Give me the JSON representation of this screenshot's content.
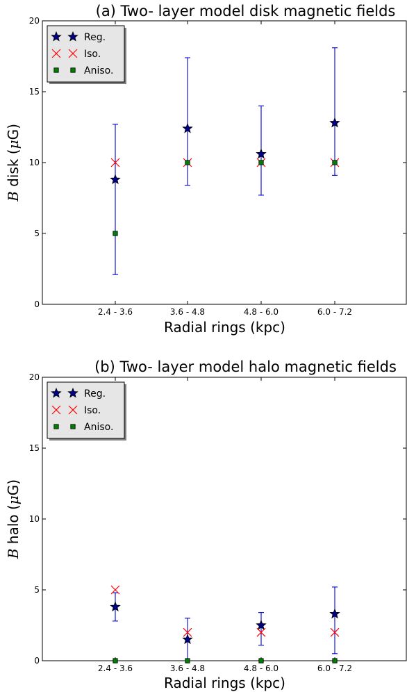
{
  "chart_data": [
    {
      "type": "scatter",
      "title": "(a) Two- layer model disk magnetic fields",
      "xlabel": "Radial rings (kpc)",
      "ylabel_var": "B",
      "ylabel_rest": " disk (",
      "ylabel_unit_mu": "μ",
      "ylabel_unit_rest": "G)",
      "categories": [
        "2.4 - 3.6",
        "3.6 - 4.8",
        "4.8 - 6.0",
        "6.0 - 7.2"
      ],
      "ylim": [
        0,
        20
      ],
      "yticks": [
        "0",
        "5",
        "10",
        "15",
        "20"
      ],
      "legend_position": "top-left",
      "series": [
        {
          "name": "Reg.",
          "marker": "star",
          "color": "#00008b",
          "values": [
            8.8,
            12.4,
            10.6,
            12.8
          ],
          "err_low": [
            2.1,
            8.4,
            7.7,
            9.1
          ],
          "err_high": [
            12.7,
            17.4,
            14.0,
            18.1
          ]
        },
        {
          "name": "Iso.",
          "marker": "x",
          "color": "#ff0000",
          "values": [
            10,
            10,
            10,
            10
          ]
        },
        {
          "name": "Aniso.",
          "marker": "square",
          "color": "#007f00",
          "values": [
            5,
            10,
            10,
            10
          ]
        }
      ]
    },
    {
      "type": "scatter",
      "title": "(b) Two- layer model halo magnetic fields",
      "xlabel": "Radial rings (kpc)",
      "ylabel_var": "B",
      "ylabel_rest": " halo (",
      "ylabel_unit_mu": "μ",
      "ylabel_unit_rest": "G)",
      "categories": [
        "2.4 - 3.6",
        "3.6 - 4.8",
        "4.8 - 6.0",
        "6.0 - 7.2"
      ],
      "ylim": [
        0,
        20
      ],
      "yticks": [
        "0",
        "5",
        "10",
        "15",
        "20"
      ],
      "legend_position": "top-left",
      "series": [
        {
          "name": "Reg.",
          "marker": "star",
          "color": "#00008b",
          "values": [
            3.8,
            1.5,
            2.5,
            3.3
          ],
          "err_low": [
            2.8,
            0,
            1.1,
            0.5
          ],
          "err_high": [
            4.8,
            3.0,
            3.4,
            5.2
          ]
        },
        {
          "name": "Iso.",
          "marker": "x",
          "color": "#ff0000",
          "values": [
            5,
            2,
            2,
            2
          ]
        },
        {
          "name": "Aniso.",
          "marker": "square",
          "color": "#007f00",
          "values": [
            0,
            0,
            0,
            0
          ]
        }
      ]
    }
  ]
}
